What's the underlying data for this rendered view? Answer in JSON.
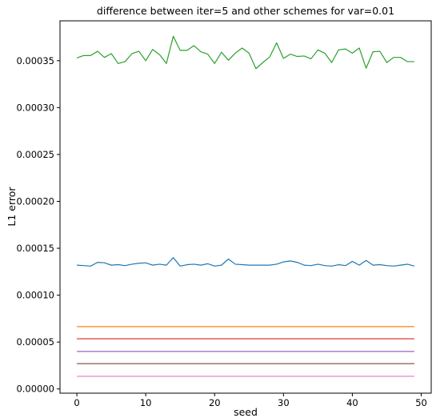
{
  "chart_data": {
    "type": "line",
    "title": "difference between iter=5 and other schemes for var=0.01",
    "xlabel": "seed",
    "ylabel": "L1 error",
    "xlim": [
      -2.45,
      51.45
    ],
    "ylim": [
      -4.5e-06,
      0.0003925
    ],
    "xticks": [
      0,
      10,
      20,
      30,
      40,
      50
    ],
    "xtick_labels": [
      "0",
      "10",
      "20",
      "30",
      "40",
      "50"
    ],
    "yticks": [
      0,
      5e-05,
      0.0001,
      0.00015,
      0.0002,
      0.00025,
      0.0003,
      0.00035
    ],
    "ytick_labels": [
      "0.00000",
      "0.00005",
      "0.00010",
      "0.00015",
      "0.00020",
      "0.00025",
      "0.00030",
      "0.00035"
    ],
    "grid": false,
    "legend": "none",
    "x": [
      0,
      1,
      2,
      3,
      4,
      5,
      6,
      7,
      8,
      9,
      10,
      11,
      12,
      13,
      14,
      15,
      16,
      17,
      18,
      19,
      20,
      21,
      22,
      23,
      24,
      25,
      26,
      27,
      28,
      29,
      30,
      31,
      32,
      33,
      34,
      35,
      36,
      37,
      38,
      39,
      40,
      41,
      42,
      43,
      44,
      45,
      46,
      47,
      48,
      49
    ],
    "series": [
      {
        "color": "#2ca02c",
        "values": [
          0.000353,
          0.0003555,
          0.0003555,
          0.00036,
          0.0003535,
          0.0003575,
          0.000347,
          0.000349,
          0.0003575,
          0.00036,
          0.00035,
          0.000362,
          0.0003565,
          0.000347,
          0.000376,
          0.000361,
          0.000361,
          0.000366,
          0.0003595,
          0.000357,
          0.000347,
          0.000359,
          0.0003505,
          0.000358,
          0.0003635,
          0.000358,
          0.0003415,
          0.000348,
          0.000354,
          0.000369,
          0.0003525,
          0.000357,
          0.0003545,
          0.000355,
          0.000352,
          0.0003615,
          0.000358,
          0.000348,
          0.0003615,
          0.0003625,
          0.000358,
          0.0003635,
          0.000342,
          0.0003595,
          0.00036,
          0.000348,
          0.0003535,
          0.0003535,
          0.000349,
          0.000349
        ]
      },
      {
        "color": "#1f77b4",
        "values": [
          0.000132,
          0.0001315,
          0.000131,
          0.000135,
          0.0001345,
          0.000132,
          0.0001325,
          0.0001315,
          0.000133,
          0.000134,
          0.0001345,
          0.000132,
          0.000133,
          0.000132,
          0.00014,
          0.000131,
          0.0001325,
          0.000133,
          0.000132,
          0.0001335,
          0.000131,
          0.000132,
          0.0001385,
          0.000133,
          0.0001325,
          0.000132,
          0.000132,
          0.000132,
          0.000132,
          0.000133,
          0.0001355,
          0.0001365,
          0.000135,
          0.000132,
          0.0001315,
          0.000133,
          0.0001315,
          0.000131,
          0.0001325,
          0.0001315,
          0.000136,
          0.000132,
          0.000137,
          0.000132,
          0.0001325,
          0.0001315,
          0.000131,
          0.000132,
          0.000133,
          0.000131
        ]
      },
      {
        "color": "#ff7f0e",
        "values": [
          6.65e-05,
          6.65e-05,
          6.65e-05,
          6.65e-05,
          6.65e-05,
          6.65e-05,
          6.65e-05,
          6.65e-05,
          6.65e-05,
          6.65e-05,
          6.65e-05,
          6.65e-05,
          6.65e-05,
          6.65e-05,
          6.65e-05,
          6.65e-05,
          6.65e-05,
          6.65e-05,
          6.65e-05,
          6.65e-05,
          6.65e-05,
          6.65e-05,
          6.65e-05,
          6.65e-05,
          6.65e-05,
          6.65e-05,
          6.65e-05,
          6.65e-05,
          6.65e-05,
          6.65e-05,
          6.65e-05,
          6.65e-05,
          6.65e-05,
          6.65e-05,
          6.65e-05,
          6.65e-05,
          6.65e-05,
          6.65e-05,
          6.65e-05,
          6.65e-05,
          6.65e-05,
          6.65e-05,
          6.65e-05,
          6.65e-05,
          6.65e-05,
          6.65e-05,
          6.65e-05,
          6.65e-05,
          6.65e-05,
          6.65e-05
        ]
      },
      {
        "color": "#d62728",
        "values": [
          5.35e-05,
          5.35e-05,
          5.35e-05,
          5.35e-05,
          5.35e-05,
          5.35e-05,
          5.35e-05,
          5.35e-05,
          5.35e-05,
          5.35e-05,
          5.35e-05,
          5.35e-05,
          5.35e-05,
          5.35e-05,
          5.35e-05,
          5.35e-05,
          5.35e-05,
          5.35e-05,
          5.35e-05,
          5.35e-05,
          5.35e-05,
          5.35e-05,
          5.35e-05,
          5.35e-05,
          5.35e-05,
          5.35e-05,
          5.35e-05,
          5.35e-05,
          5.35e-05,
          5.35e-05,
          5.35e-05,
          5.35e-05,
          5.35e-05,
          5.35e-05,
          5.35e-05,
          5.35e-05,
          5.35e-05,
          5.35e-05,
          5.35e-05,
          5.35e-05,
          5.35e-05,
          5.35e-05,
          5.35e-05,
          5.35e-05,
          5.35e-05,
          5.35e-05,
          5.35e-05,
          5.35e-05,
          5.35e-05,
          5.35e-05
        ]
      },
      {
        "color": "#9467bd",
        "values": [
          4e-05,
          4e-05,
          4e-05,
          4e-05,
          4e-05,
          4e-05,
          4e-05,
          4e-05,
          4e-05,
          4e-05,
          4e-05,
          4e-05,
          4e-05,
          4e-05,
          4e-05,
          4e-05,
          4e-05,
          4e-05,
          4e-05,
          4e-05,
          4e-05,
          4e-05,
          4e-05,
          4e-05,
          4e-05,
          4e-05,
          4e-05,
          4e-05,
          4e-05,
          4e-05,
          4e-05,
          4e-05,
          4e-05,
          4e-05,
          4e-05,
          4e-05,
          4e-05,
          4e-05,
          4e-05,
          4e-05,
          4e-05,
          4e-05,
          4e-05,
          4e-05,
          4e-05,
          4e-05,
          4e-05,
          4e-05,
          4e-05,
          4e-05
        ]
      },
      {
        "color": "#8c564b",
        "values": [
          2.7e-05,
          2.7e-05,
          2.7e-05,
          2.7e-05,
          2.7e-05,
          2.7e-05,
          2.7e-05,
          2.7e-05,
          2.7e-05,
          2.7e-05,
          2.7e-05,
          2.7e-05,
          2.7e-05,
          2.7e-05,
          2.7e-05,
          2.7e-05,
          2.7e-05,
          2.7e-05,
          2.7e-05,
          2.7e-05,
          2.7e-05,
          2.7e-05,
          2.7e-05,
          2.7e-05,
          2.7e-05,
          2.7e-05,
          2.7e-05,
          2.7e-05,
          2.7e-05,
          2.7e-05,
          2.7e-05,
          2.7e-05,
          2.7e-05,
          2.7e-05,
          2.7e-05,
          2.7e-05,
          2.7e-05,
          2.7e-05,
          2.7e-05,
          2.7e-05,
          2.7e-05,
          2.7e-05,
          2.7e-05,
          2.7e-05,
          2.7e-05,
          2.7e-05,
          2.7e-05,
          2.7e-05,
          2.7e-05,
          2.7e-05
        ]
      },
      {
        "color": "#e377c2",
        "values": [
          1.35e-05,
          1.35e-05,
          1.35e-05,
          1.35e-05,
          1.35e-05,
          1.35e-05,
          1.35e-05,
          1.35e-05,
          1.35e-05,
          1.35e-05,
          1.35e-05,
          1.35e-05,
          1.35e-05,
          1.35e-05,
          1.35e-05,
          1.35e-05,
          1.35e-05,
          1.35e-05,
          1.35e-05,
          1.35e-05,
          1.35e-05,
          1.35e-05,
          1.35e-05,
          1.35e-05,
          1.35e-05,
          1.35e-05,
          1.35e-05,
          1.35e-05,
          1.35e-05,
          1.35e-05,
          1.35e-05,
          1.35e-05,
          1.35e-05,
          1.35e-05,
          1.35e-05,
          1.35e-05,
          1.35e-05,
          1.35e-05,
          1.35e-05,
          1.35e-05,
          1.35e-05,
          1.35e-05,
          1.35e-05,
          1.35e-05,
          1.35e-05,
          1.35e-05,
          1.35e-05,
          1.35e-05,
          1.35e-05,
          1.35e-05
        ]
      }
    ]
  }
}
